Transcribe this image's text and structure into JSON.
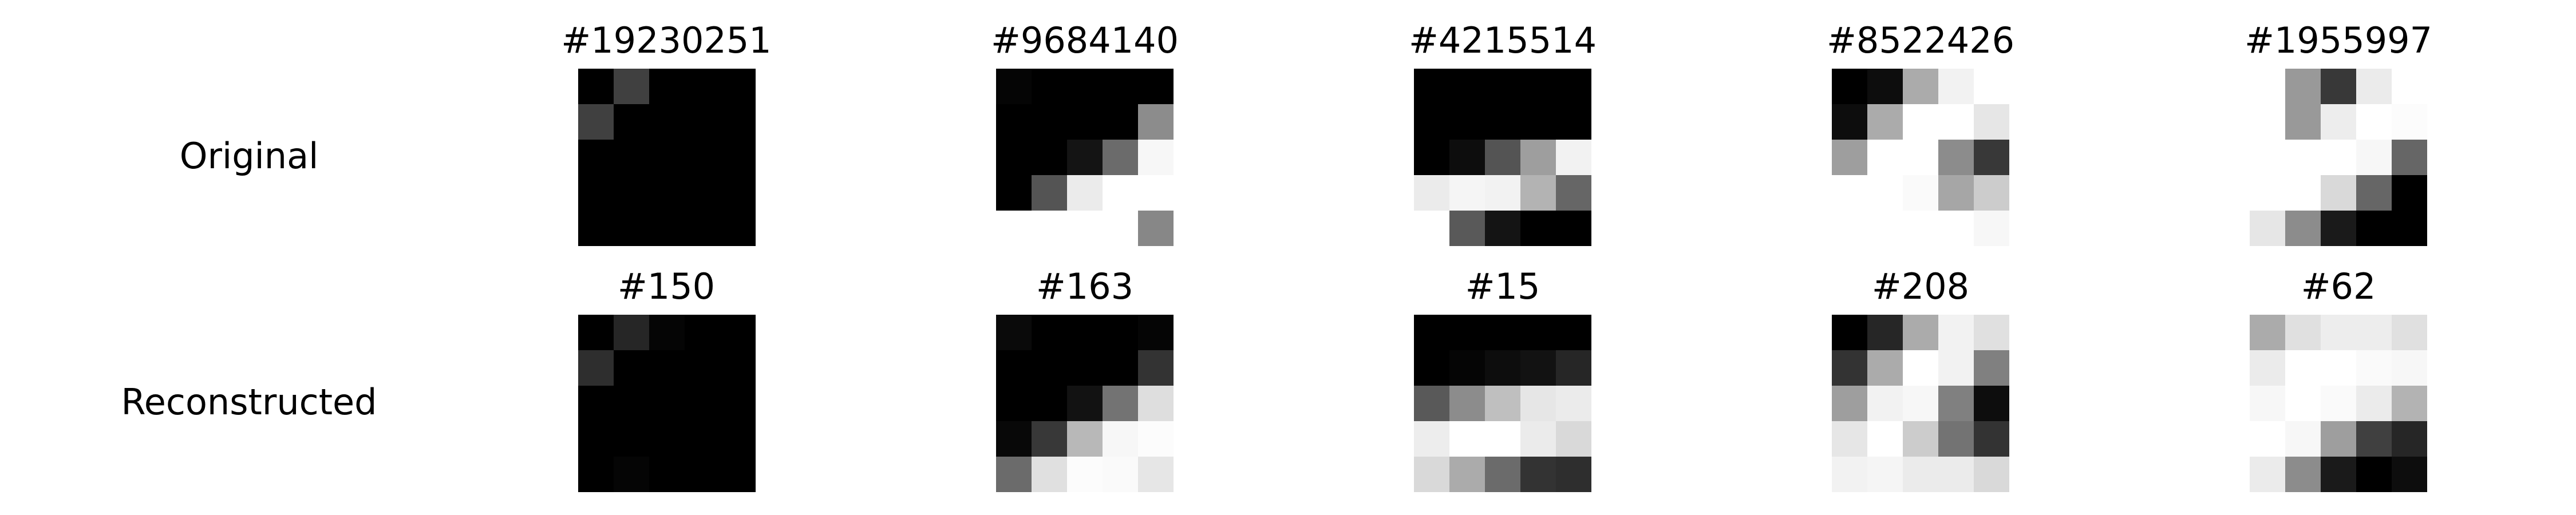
{
  "figure": {
    "row_labels": [
      "Original",
      "Reconstructed"
    ],
    "rows": [
      {
        "label": "Original",
        "panels": [
          {
            "title": "#19230251",
            "pixels": [
              [
                0.0,
                0.25,
                0.0,
                0.0,
                0.0
              ],
              [
                0.25,
                0.0,
                0.0,
                0.0,
                0.0
              ],
              [
                0.0,
                0.0,
                0.0,
                0.0,
                0.0
              ],
              [
                0.0,
                0.0,
                0.0,
                0.0,
                0.0
              ],
              [
                0.0,
                0.0,
                0.0,
                0.0,
                0.0
              ]
            ]
          },
          {
            "title": "#9684140",
            "pixels": [
              [
                0.02,
                0.0,
                0.0,
                0.0,
                0.0
              ],
              [
                0.0,
                0.0,
                0.0,
                0.0,
                0.55
              ],
              [
                0.0,
                0.0,
                0.08,
                0.42,
                0.97
              ],
              [
                0.0,
                0.33,
                0.92,
                1.0,
                1.0
              ],
              [
                1.0,
                1.0,
                1.0,
                1.0,
                0.53
              ]
            ]
          },
          {
            "title": "#4215514",
            "pixels": [
              [
                0.0,
                0.0,
                0.0,
                0.0,
                0.0
              ],
              [
                0.0,
                0.0,
                0.0,
                0.0,
                0.0
              ],
              [
                0.0,
                0.05,
                0.33,
                0.62,
                0.95
              ],
              [
                0.92,
                0.96,
                0.95,
                0.7,
                0.4
              ],
              [
                1.0,
                0.35,
                0.08,
                0.0,
                0.0
              ]
            ]
          },
          {
            "title": "#8522426",
            "pixels": [
              [
                0.0,
                0.05,
                0.67,
                0.95,
                1.0
              ],
              [
                0.05,
                0.67,
                1.0,
                1.0,
                0.9
              ],
              [
                0.62,
                1.0,
                1.0,
                0.55,
                0.22
              ],
              [
                1.0,
                1.0,
                0.98,
                0.65,
                0.8
              ],
              [
                1.0,
                1.0,
                1.0,
                1.0,
                0.97
              ]
            ]
          },
          {
            "title": "#1955997",
            "pixels": [
              [
                1.0,
                0.6,
                0.22,
                0.92,
                1.0
              ],
              [
                1.0,
                0.6,
                0.93,
                1.0,
                0.99
              ],
              [
                1.0,
                1.0,
                1.0,
                0.97,
                0.4
              ],
              [
                1.0,
                1.0,
                0.85,
                0.4,
                0.0
              ],
              [
                0.9,
                0.55,
                0.1,
                0.0,
                0.0
              ]
            ]
          }
        ]
      },
      {
        "label": "Reconstructed",
        "panels": [
          {
            "title": "#150",
            "pixels": [
              [
                0.0,
                0.15,
                0.02,
                0.0,
                0.0
              ],
              [
                0.18,
                0.0,
                0.0,
                0.0,
                0.0
              ],
              [
                0.0,
                0.0,
                0.0,
                0.0,
                0.0
              ],
              [
                0.0,
                0.0,
                0.0,
                0.0,
                0.0
              ],
              [
                0.0,
                0.02,
                0.0,
                0.0,
                0.0
              ]
            ]
          },
          {
            "title": "#163",
            "pixels": [
              [
                0.04,
                0.0,
                0.0,
                0.0,
                0.02
              ],
              [
                0.0,
                0.0,
                0.0,
                0.0,
                0.2
              ],
              [
                0.0,
                0.0,
                0.07,
                0.45,
                0.87
              ],
              [
                0.03,
                0.22,
                0.72,
                0.97,
                0.99
              ],
              [
                0.42,
                0.88,
                0.99,
                0.98,
                0.9
              ]
            ]
          },
          {
            "title": "#15",
            "pixels": [
              [
                0.0,
                0.0,
                0.0,
                0.0,
                0.0
              ],
              [
                0.0,
                0.02,
                0.05,
                0.07,
                0.15
              ],
              [
                0.35,
                0.55,
                0.75,
                0.9,
                0.92
              ],
              [
                0.93,
                1.0,
                1.0,
                0.92,
                0.85
              ],
              [
                0.85,
                0.67,
                0.42,
                0.2,
                0.18
              ]
            ]
          },
          {
            "title": "#208",
            "pixels": [
              [
                0.0,
                0.15,
                0.67,
                0.95,
                0.88
              ],
              [
                0.2,
                0.67,
                1.0,
                0.95,
                0.5
              ],
              [
                0.62,
                0.95,
                0.97,
                0.5,
                0.05
              ],
              [
                0.9,
                1.0,
                0.8,
                0.45,
                0.2
              ],
              [
                0.95,
                0.96,
                0.92,
                0.92,
                0.85
              ]
            ]
          },
          {
            "title": "#62",
            "pixels": [
              [
                0.67,
                0.88,
                0.93,
                0.93,
                0.88
              ],
              [
                0.92,
                1.0,
                1.0,
                0.98,
                0.97
              ],
              [
                0.97,
                1.0,
                0.98,
                0.92,
                0.7
              ],
              [
                1.0,
                0.97,
                0.62,
                0.25,
                0.15
              ],
              [
                0.92,
                0.55,
                0.1,
                0.0,
                0.05
              ]
            ]
          }
        ]
      }
    ]
  }
}
